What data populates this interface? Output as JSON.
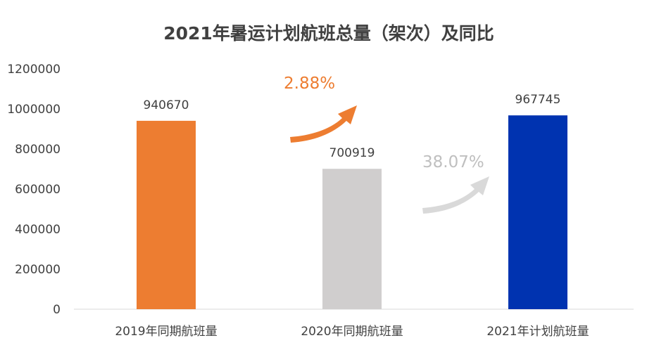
{
  "chart_data": {
    "type": "bar",
    "title": "2021年暑运计划航班总量（架次）及同比",
    "categories": [
      "2019年同期航班量",
      "2020年同期航班量",
      "2021年计划航班量"
    ],
    "values": [
      940670,
      700919,
      967745
    ],
    "data_labels": [
      "940670",
      "700919",
      "967745"
    ],
    "bar_colors": [
      "#ED7D31",
      "#D0CECE",
      "#0033B0"
    ],
    "ylim": [
      0,
      1200000
    ],
    "yticks": [
      "0",
      "200000",
      "400000",
      "600000",
      "800000",
      "1000000",
      "1200000"
    ],
    "grid": false,
    "legend": "none",
    "annotations": [
      {
        "text": "2.88%",
        "color": "#ED7D31",
        "arrow_color": "#ED7D31"
      },
      {
        "text": "38.07%",
        "color": "#BFBFBF",
        "arrow_color": "#D9D9D9"
      }
    ]
  }
}
